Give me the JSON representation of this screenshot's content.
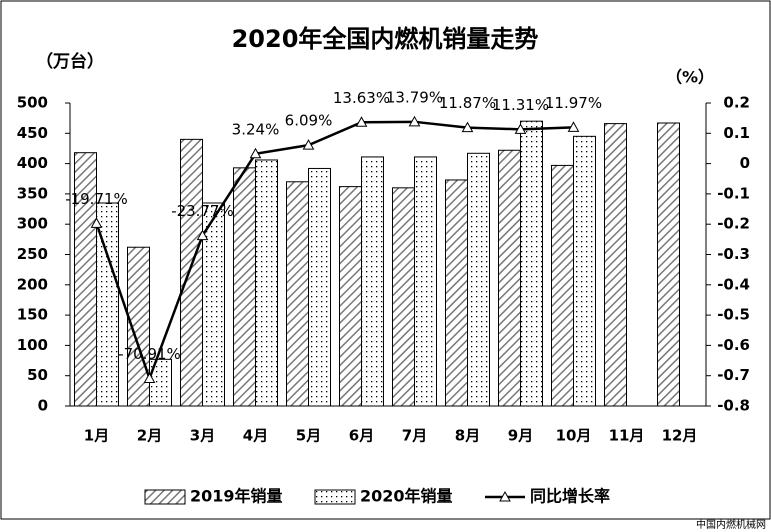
{
  "chart_data": {
    "type": "bar_line",
    "title": "2020年全国内燃机销量走势",
    "y_label": "（万台）",
    "y2_label": "（%）",
    "source": "中国内燃机械网",
    "categories": [
      "1月",
      "2月",
      "3月",
      "4月",
      "5月",
      "6月",
      "7月",
      "8月",
      "9月",
      "10月",
      "11月",
      "12月"
    ],
    "series": [
      {
        "name": "2019年销量",
        "type": "bar",
        "color": "#000000",
        "pattern": "hatch",
        "values": [
          418,
          262,
          440,
          393,
          370,
          362,
          360,
          373,
          422,
          397,
          466,
          467
        ]
      },
      {
        "name": "2020年销量",
        "type": "bar",
        "color": "#000000",
        "pattern": "dots",
        "values": [
          335,
          77,
          335,
          406,
          392,
          411,
          411,
          417,
          470,
          445,
          null,
          null
        ]
      },
      {
        "name": "同比增长率",
        "type": "line",
        "axis": "y2",
        "color": "#000000",
        "values": [
          -0.1971,
          -0.7091,
          -0.2377,
          0.0324,
          0.0609,
          0.1363,
          0.1379,
          0.1187,
          0.1131,
          0.1197,
          null,
          null
        ],
        "value_labels": [
          "-19.71%",
          "-70.91%",
          "-23.77%",
          "3.24%",
          "6.09%",
          "13.63%",
          "13.79%",
          "11.87%",
          "11.31%",
          "11.97%",
          null,
          null
        ]
      }
    ],
    "ylim": [
      0,
      500
    ],
    "yticks": [
      0,
      50,
      100,
      150,
      200,
      250,
      300,
      350,
      400,
      450,
      500
    ],
    "y2lim": [
      -0.8,
      0.2
    ],
    "y2ticks": [
      -0.8,
      -0.7,
      -0.6,
      -0.5,
      -0.4,
      -0.3,
      -0.2,
      -0.1,
      0,
      0.1,
      0.2
    ],
    "legend": "bottom"
  }
}
